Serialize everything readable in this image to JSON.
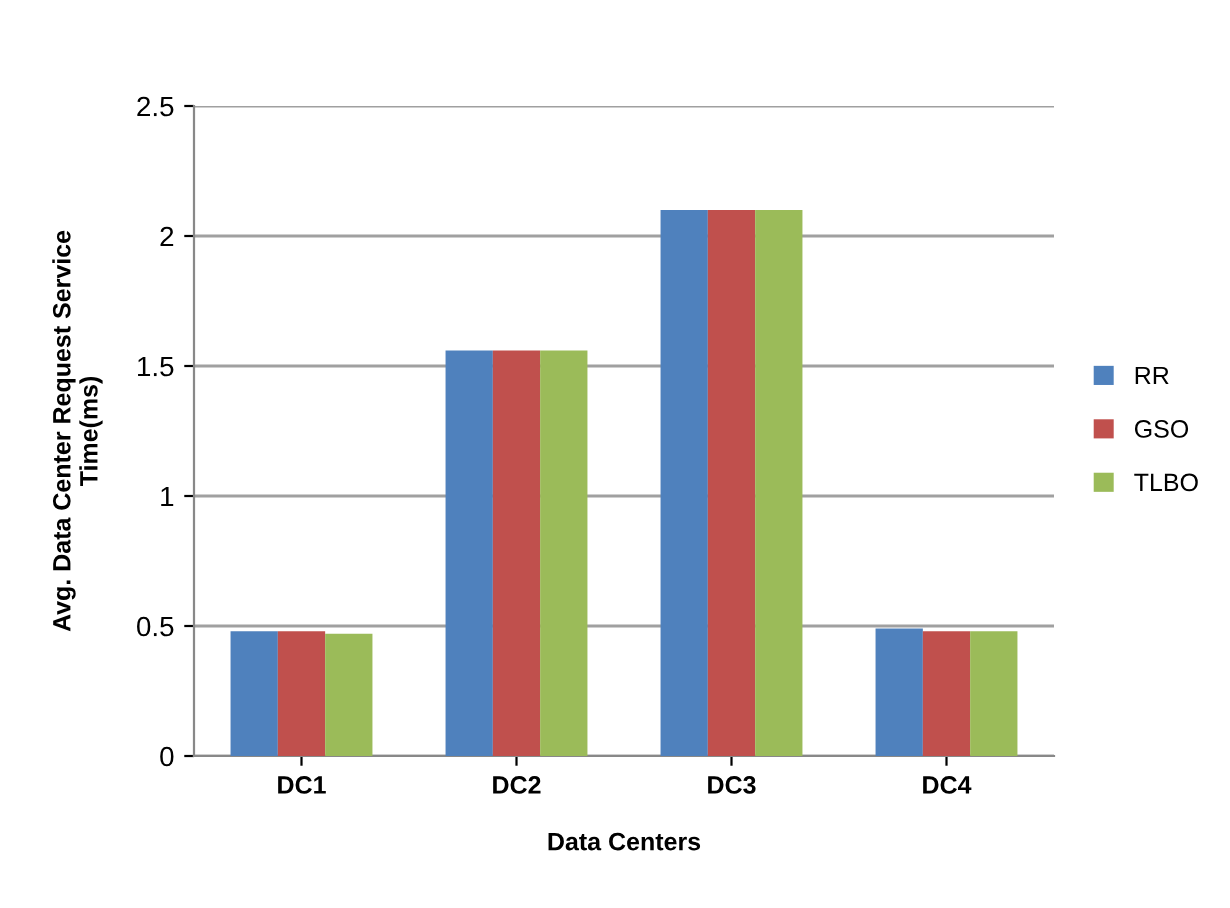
{
  "chart_data": {
    "type": "bar",
    "xlabel": "Data Centers",
    "ylabel": "Avg. Data Center Request Service\nTime(ms)",
    "categories": [
      "DC1",
      "DC2",
      "DC3",
      "DC4"
    ],
    "series": [
      {
        "name": "RR",
        "color": "#4f81bd",
        "values": [
          0.48,
          1.56,
          2.1,
          0.49
        ]
      },
      {
        "name": "GSO",
        "color": "#c0504d",
        "values": [
          0.48,
          1.56,
          2.1,
          0.48
        ]
      },
      {
        "name": "TLBO",
        "color": "#9bbb59",
        "values": [
          0.47,
          1.56,
          2.1,
          0.48
        ]
      }
    ],
    "ylim": [
      0,
      2.5
    ],
    "yticks": [
      0,
      0.5,
      1,
      1.5,
      2,
      2.5
    ],
    "grid": "y",
    "legend": "right"
  }
}
